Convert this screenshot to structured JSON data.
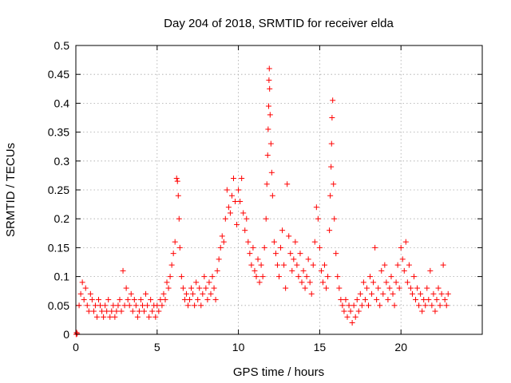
{
  "chart_data": {
    "type": "scatter",
    "title": "Day 204 of 2018, SRMTID for receiver elda",
    "xlabel": "GPS time / hours",
    "ylabel": "SRMTID / TECUs",
    "xlim": [
      0,
      25
    ],
    "ylim": [
      0,
      0.5
    ],
    "xticks": [
      0,
      5,
      10,
      15,
      20
    ],
    "xtick_labels": [
      "0",
      "5",
      "10",
      "15",
      "20"
    ],
    "yticks": [
      0,
      0.05,
      0.1,
      0.15,
      0.2,
      0.25,
      0.3,
      0.35,
      0.4,
      0.45,
      0.5
    ],
    "ytick_labels": [
      "0",
      "0.05",
      "0.1",
      "0.15",
      "0.2",
      "0.25",
      "0.3",
      "0.35",
      "0.4",
      "0.45",
      "0.5"
    ],
    "grid": true,
    "marker": "plus",
    "series": [
      {
        "name": "SRMTID",
        "color": "#ff0000",
        "points": [
          [
            0.02,
            0.0
          ],
          [
            0.05,
            0.003
          ],
          [
            0.08,
            0.001
          ],
          [
            0.2,
            0.05
          ],
          [
            0.3,
            0.07
          ],
          [
            0.4,
            0.09
          ],
          [
            0.5,
            0.06
          ],
          [
            0.6,
            0.08
          ],
          [
            0.7,
            0.05
          ],
          [
            0.8,
            0.04
          ],
          [
            0.9,
            0.07
          ],
          [
            1.0,
            0.06
          ],
          [
            1.1,
            0.04
          ],
          [
            1.2,
            0.05
          ],
          [
            1.3,
            0.03
          ],
          [
            1.4,
            0.06
          ],
          [
            1.5,
            0.05
          ],
          [
            1.6,
            0.04
          ],
          [
            1.7,
            0.03
          ],
          [
            1.8,
            0.05
          ],
          [
            1.9,
            0.04
          ],
          [
            2.0,
            0.06
          ],
          [
            2.1,
            0.03
          ],
          [
            2.2,
            0.04
          ],
          [
            2.3,
            0.05
          ],
          [
            2.4,
            0.03
          ],
          [
            2.5,
            0.04
          ],
          [
            2.6,
            0.05
          ],
          [
            2.7,
            0.06
          ],
          [
            2.8,
            0.04
          ],
          [
            2.9,
            0.11
          ],
          [
            3.0,
            0.05
          ],
          [
            3.1,
            0.08
          ],
          [
            3.2,
            0.06
          ],
          [
            3.3,
            0.05
          ],
          [
            3.4,
            0.07
          ],
          [
            3.5,
            0.04
          ],
          [
            3.6,
            0.06
          ],
          [
            3.7,
            0.05
          ],
          [
            3.8,
            0.03
          ],
          [
            3.9,
            0.04
          ],
          [
            4.0,
            0.06
          ],
          [
            4.1,
            0.05
          ],
          [
            4.2,
            0.04
          ],
          [
            4.3,
            0.07
          ],
          [
            4.4,
            0.05
          ],
          [
            4.5,
            0.03
          ],
          [
            4.6,
            0.06
          ],
          [
            4.7,
            0.04
          ],
          [
            4.8,
            0.05
          ],
          [
            4.9,
            0.03
          ],
          [
            5.0,
            0.05
          ],
          [
            5.1,
            0.04
          ],
          [
            5.2,
            0.06
          ],
          [
            5.3,
            0.05
          ],
          [
            5.4,
            0.07
          ],
          [
            5.5,
            0.06
          ],
          [
            5.6,
            0.09
          ],
          [
            5.7,
            0.08
          ],
          [
            5.8,
            0.1
          ],
          [
            5.9,
            0.12
          ],
          [
            6.0,
            0.14
          ],
          [
            6.1,
            0.16
          ],
          [
            6.2,
            0.27
          ],
          [
            6.25,
            0.265
          ],
          [
            6.3,
            0.24
          ],
          [
            6.35,
            0.2
          ],
          [
            6.4,
            0.15
          ],
          [
            6.5,
            0.1
          ],
          [
            6.6,
            0.08
          ],
          [
            6.7,
            0.06
          ],
          [
            6.8,
            0.07
          ],
          [
            6.9,
            0.05
          ],
          [
            7.0,
            0.06
          ],
          [
            7.1,
            0.08
          ],
          [
            7.2,
            0.07
          ],
          [
            7.3,
            0.05
          ],
          [
            7.4,
            0.09
          ],
          [
            7.5,
            0.06
          ],
          [
            7.6,
            0.08
          ],
          [
            7.7,
            0.05
          ],
          [
            7.8,
            0.07
          ],
          [
            7.9,
            0.1
          ],
          [
            8.0,
            0.08
          ],
          [
            8.1,
            0.06
          ],
          [
            8.2,
            0.09
          ],
          [
            8.3,
            0.07
          ],
          [
            8.4,
            0.1
          ],
          [
            8.5,
            0.08
          ],
          [
            8.6,
            0.06
          ],
          [
            8.7,
            0.11
          ],
          [
            8.8,
            0.13
          ],
          [
            8.9,
            0.15
          ],
          [
            9.0,
            0.17
          ],
          [
            9.1,
            0.16
          ],
          [
            9.2,
            0.2
          ],
          [
            9.3,
            0.25
          ],
          [
            9.4,
            0.22
          ],
          [
            9.5,
            0.21
          ],
          [
            9.6,
            0.24
          ],
          [
            9.7,
            0.27
          ],
          [
            9.8,
            0.23
          ],
          [
            9.9,
            0.19
          ],
          [
            10.0,
            0.25
          ],
          [
            10.1,
            0.23
          ],
          [
            10.2,
            0.27
          ],
          [
            10.3,
            0.21
          ],
          [
            10.4,
            0.18
          ],
          [
            10.5,
            0.2
          ],
          [
            10.6,
            0.16
          ],
          [
            10.7,
            0.14
          ],
          [
            10.8,
            0.12
          ],
          [
            10.9,
            0.15
          ],
          [
            11.0,
            0.11
          ],
          [
            11.1,
            0.1
          ],
          [
            11.2,
            0.13
          ],
          [
            11.3,
            0.09
          ],
          [
            11.4,
            0.12
          ],
          [
            11.5,
            0.1
          ],
          [
            11.6,
            0.15
          ],
          [
            11.7,
            0.2
          ],
          [
            11.75,
            0.26
          ],
          [
            11.8,
            0.31
          ],
          [
            11.83,
            0.355
          ],
          [
            11.86,
            0.395
          ],
          [
            11.88,
            0.44
          ],
          [
            11.9,
            0.46
          ],
          [
            11.92,
            0.425
          ],
          [
            11.95,
            0.38
          ],
          [
            12.0,
            0.33
          ],
          [
            12.05,
            0.28
          ],
          [
            12.1,
            0.24
          ],
          [
            12.2,
            0.16
          ],
          [
            12.3,
            0.14
          ],
          [
            12.4,
            0.12
          ],
          [
            12.5,
            0.1
          ],
          [
            12.6,
            0.15
          ],
          [
            12.7,
            0.18
          ],
          [
            12.8,
            0.12
          ],
          [
            12.9,
            0.08
          ],
          [
            13.0,
            0.26
          ],
          [
            13.1,
            0.17
          ],
          [
            13.2,
            0.14
          ],
          [
            13.3,
            0.11
          ],
          [
            13.4,
            0.13
          ],
          [
            13.5,
            0.16
          ],
          [
            13.6,
            0.12
          ],
          [
            13.7,
            0.1
          ],
          [
            13.8,
            0.14
          ],
          [
            13.9,
            0.09
          ],
          [
            14.0,
            0.11
          ],
          [
            14.1,
            0.08
          ],
          [
            14.2,
            0.1
          ],
          [
            14.3,
            0.13
          ],
          [
            14.4,
            0.09
          ],
          [
            14.5,
            0.07
          ],
          [
            14.6,
            0.12
          ],
          [
            14.7,
            0.16
          ],
          [
            14.8,
            0.22
          ],
          [
            14.9,
            0.2
          ],
          [
            15.0,
            0.15
          ],
          [
            15.1,
            0.11
          ],
          [
            15.2,
            0.09
          ],
          [
            15.3,
            0.12
          ],
          [
            15.4,
            0.08
          ],
          [
            15.5,
            0.1
          ],
          [
            15.6,
            0.18
          ],
          [
            15.65,
            0.24
          ],
          [
            15.7,
            0.29
          ],
          [
            15.73,
            0.33
          ],
          [
            15.76,
            0.375
          ],
          [
            15.8,
            0.405
          ],
          [
            15.85,
            0.26
          ],
          [
            15.9,
            0.2
          ],
          [
            16.0,
            0.14
          ],
          [
            16.1,
            0.1
          ],
          [
            16.2,
            0.08
          ],
          [
            16.3,
            0.06
          ],
          [
            16.4,
            0.05
          ],
          [
            16.5,
            0.04
          ],
          [
            16.6,
            0.06
          ],
          [
            16.7,
            0.03
          ],
          [
            16.8,
            0.05
          ],
          [
            16.9,
            0.04
          ],
          [
            17.0,
            0.02
          ],
          [
            17.1,
            0.05
          ],
          [
            17.2,
            0.03
          ],
          [
            17.3,
            0.06
          ],
          [
            17.4,
            0.04
          ],
          [
            17.5,
            0.07
          ],
          [
            17.6,
            0.05
          ],
          [
            17.7,
            0.09
          ],
          [
            17.8,
            0.06
          ],
          [
            17.9,
            0.08
          ],
          [
            18.0,
            0.05
          ],
          [
            18.1,
            0.1
          ],
          [
            18.2,
            0.07
          ],
          [
            18.3,
            0.09
          ],
          [
            18.4,
            0.15
          ],
          [
            18.5,
            0.06
          ],
          [
            18.6,
            0.08
          ],
          [
            18.7,
            0.05
          ],
          [
            18.8,
            0.11
          ],
          [
            18.9,
            0.07
          ],
          [
            19.0,
            0.12
          ],
          [
            19.1,
            0.09
          ],
          [
            19.2,
            0.06
          ],
          [
            19.3,
            0.08
          ],
          [
            19.4,
            0.1
          ],
          [
            19.5,
            0.07
          ],
          [
            19.6,
            0.05
          ],
          [
            19.7,
            0.09
          ],
          [
            19.8,
            0.12
          ],
          [
            19.9,
            0.08
          ],
          [
            20.0,
            0.15
          ],
          [
            20.1,
            0.13
          ],
          [
            20.2,
            0.11
          ],
          [
            20.3,
            0.16
          ],
          [
            20.4,
            0.09
          ],
          [
            20.5,
            0.12
          ],
          [
            20.6,
            0.08
          ],
          [
            20.7,
            0.07
          ],
          [
            20.8,
            0.1
          ],
          [
            20.9,
            0.06
          ],
          [
            21.0,
            0.08
          ],
          [
            21.1,
            0.05
          ],
          [
            21.2,
            0.07
          ],
          [
            21.3,
            0.04
          ],
          [
            21.4,
            0.06
          ],
          [
            21.5,
            0.05
          ],
          [
            21.6,
            0.08
          ],
          [
            21.7,
            0.06
          ],
          [
            21.8,
            0.11
          ],
          [
            21.9,
            0.05
          ],
          [
            22.0,
            0.07
          ],
          [
            22.1,
            0.04
          ],
          [
            22.2,
            0.06
          ],
          [
            22.3,
            0.08
          ],
          [
            22.4,
            0.05
          ],
          [
            22.5,
            0.07
          ],
          [
            22.6,
            0.12
          ],
          [
            22.7,
            0.06
          ],
          [
            22.8,
            0.05
          ],
          [
            22.9,
            0.07
          ]
        ]
      }
    ]
  }
}
